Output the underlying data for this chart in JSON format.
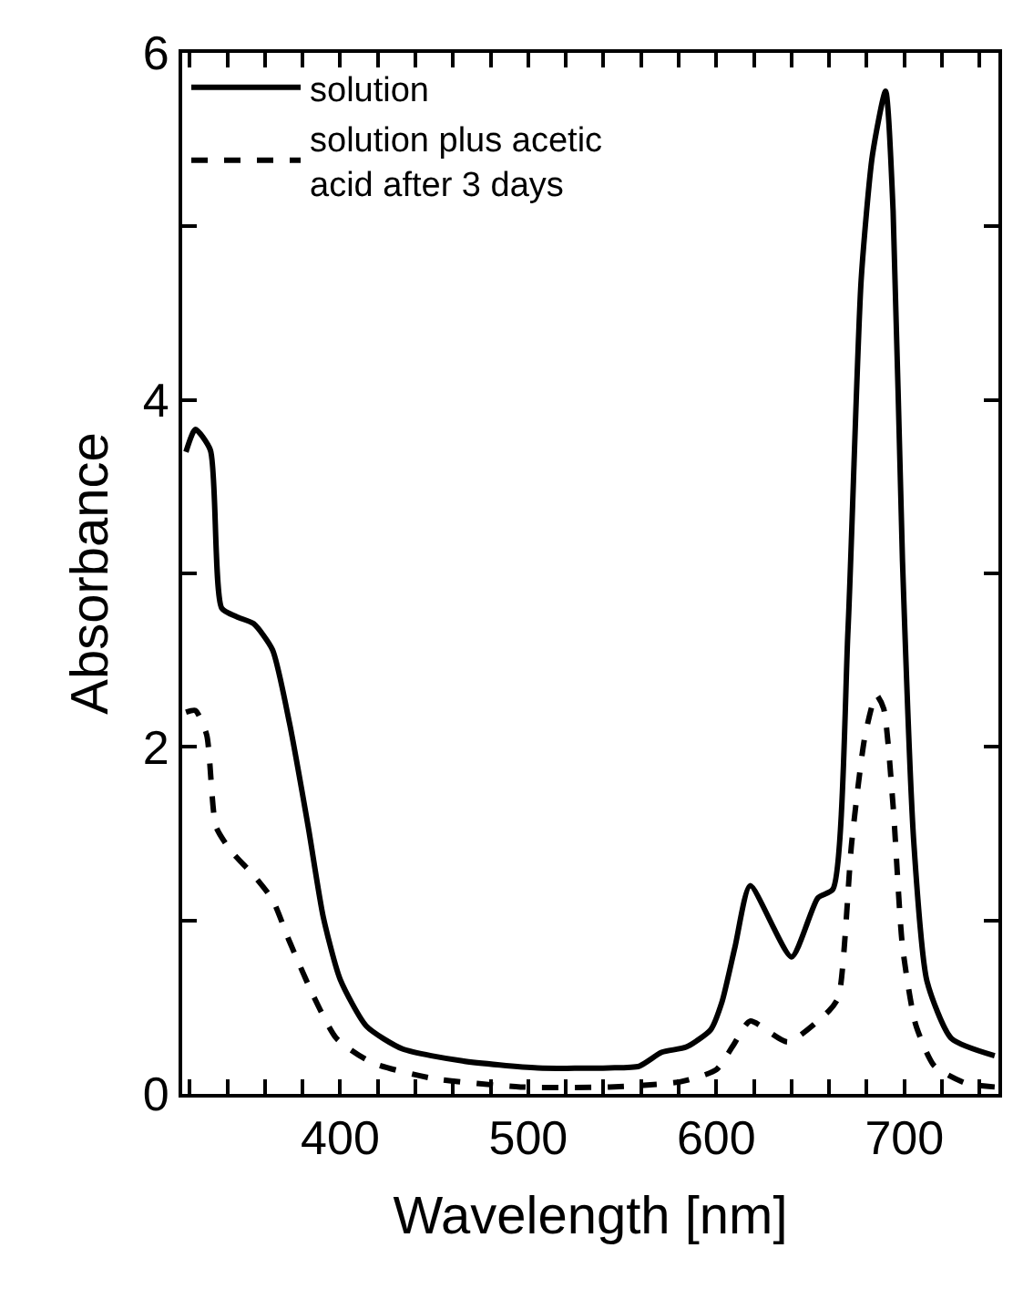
{
  "chart_data": {
    "type": "line",
    "xlabel": "Wavelength [nm]",
    "ylabel": "Absorbance",
    "xlim": [
      316,
      750
    ],
    "ylim": [
      0,
      6
    ],
    "xticks": [
      {
        "value": 320,
        "label": null
      },
      {
        "value": 340,
        "label": null
      },
      {
        "value": 360,
        "label": null
      },
      {
        "value": 380,
        "label": null
      },
      400,
      {
        "value": 420,
        "label": null
      },
      {
        "value": 440,
        "label": null
      },
      {
        "value": 460,
        "label": null
      },
      {
        "value": 480,
        "label": null
      },
      500,
      {
        "value": 520,
        "label": null
      },
      {
        "value": 540,
        "label": null
      },
      {
        "value": 560,
        "label": null
      },
      {
        "value": 580,
        "label": null
      },
      600,
      {
        "value": 620,
        "label": null
      },
      {
        "value": 640,
        "label": null
      },
      {
        "value": 660,
        "label": null
      },
      {
        "value": 680,
        "label": null
      },
      700,
      {
        "value": 720,
        "label": null
      },
      {
        "value": 740,
        "label": null
      }
    ],
    "yticks": [
      0,
      {
        "value": 1,
        "label": null
      },
      2,
      {
        "value": 3,
        "label": null
      },
      4,
      {
        "value": 5,
        "label": null
      },
      6
    ],
    "legend": "top left",
    "marker": "none",
    "series": [
      {
        "name": "solution",
        "color": "#000000",
        "line_style": "solid",
        "x": [
          318,
          323,
          331,
          337,
          345,
          354,
          364,
          373,
          383,
          391,
          400,
          414,
          433,
          465,
          505,
          543,
          559,
          571,
          584,
          597,
          603,
          610,
          618,
          640,
          654,
          662,
          670,
          677,
          683,
          690,
          694,
          699,
          705,
          712,
          725,
          748
        ],
        "values": [
          3.7,
          3.83,
          3.71,
          2.8,
          2.75,
          2.71,
          2.56,
          2.14,
          1.54,
          1.02,
          0.66,
          0.39,
          0.26,
          0.19,
          0.15,
          0.15,
          0.16,
          0.24,
          0.27,
          0.37,
          0.53,
          0.85,
          1.2,
          0.79,
          1.13,
          1.18,
          2.67,
          4.69,
          5.41,
          5.78,
          5.09,
          3.07,
          1.45,
          0.65,
          0.32,
          0.22
        ]
      },
      {
        "name": "solution plus acetic\nacid after 3 days",
        "color": "#000000",
        "line_style": "dashed",
        "x": [
          318,
          323,
          329,
          334,
          342,
          354,
          364,
          373,
          386,
          398,
          417,
          449,
          496,
          543,
          581,
          600,
          609,
          618,
          638,
          660,
          665,
          672,
          679,
          685,
          689,
          694,
          699,
          706,
          716,
          733,
          748
        ],
        "values": [
          2.2,
          2.21,
          2.07,
          1.54,
          1.4,
          1.26,
          1.12,
          0.88,
          0.56,
          0.32,
          0.18,
          0.09,
          0.04,
          0.04,
          0.07,
          0.14,
          0.28,
          0.42,
          0.3,
          0.48,
          0.56,
          1.45,
          2.06,
          2.3,
          2.22,
          1.66,
          0.85,
          0.4,
          0.16,
          0.06,
          0.04
        ]
      }
    ]
  }
}
